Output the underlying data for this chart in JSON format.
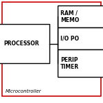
{
  "title": "Microcontroller",
  "outer_border_color": "#cc0000",
  "box_edge_color": "#000000",
  "box_fill_color": "#ffffff",
  "bg_color": "#ffffff",
  "text_color": "#000000",
  "cpu_label": "PROCESSOR",
  "right_blocks": [
    [
      "RAM /",
      "MEMO"
    ],
    [
      "I/O PO"
    ],
    [
      "PERIP",
      "TIMER"
    ]
  ],
  "title_fontsize": 5.0,
  "block_fontsize": 5.5,
  "figsize": [
    1.5,
    1.5
  ],
  "dpi": 100
}
